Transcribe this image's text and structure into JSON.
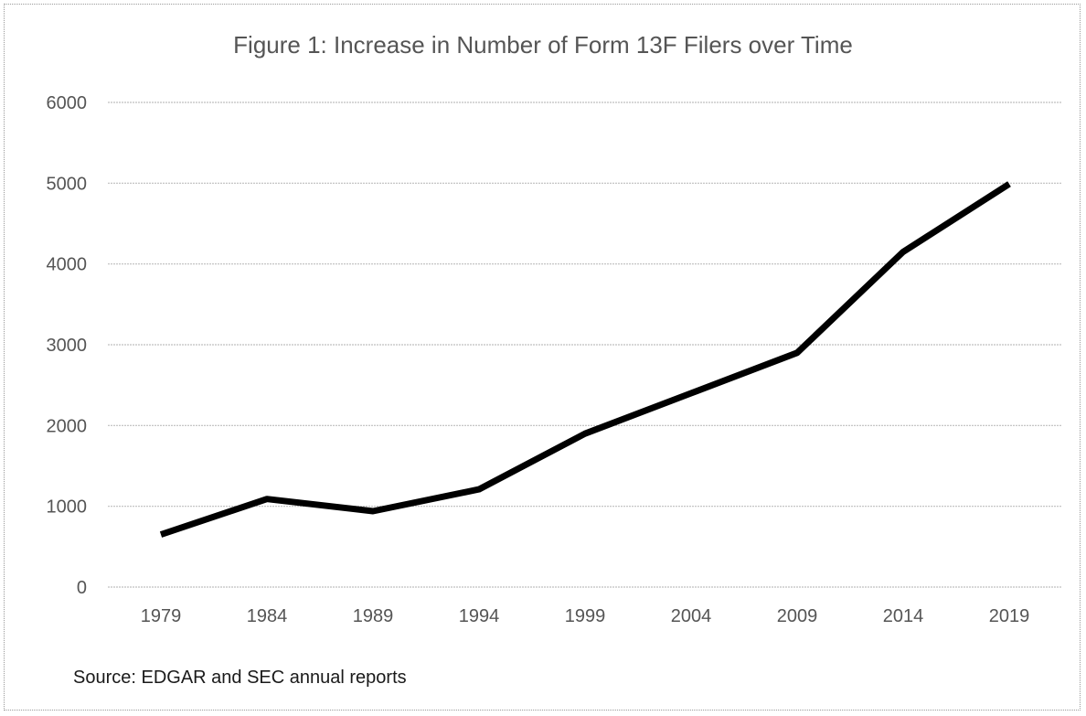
{
  "chart_data": {
    "type": "line",
    "title": "Figure 1: Increase in Number of Form 13F Filers over Time",
    "xlabel": "",
    "ylabel": "",
    "categories": [
      "1979",
      "1984",
      "1989",
      "1994",
      "1999",
      "2004",
      "2009",
      "2014",
      "2019"
    ],
    "series": [
      {
        "values": [
          650,
          1090,
          940,
          1210,
          1900,
          2400,
          2900,
          4150,
          4990
        ]
      }
    ],
    "ylim": [
      0,
      6000
    ],
    "yticks": [
      0,
      1000,
      2000,
      3000,
      4000,
      5000,
      6000
    ],
    "grid": true,
    "legend": "none",
    "line_color": "#000000",
    "grid_color": "#bfbfbf"
  },
  "source_note": "Source:  EDGAR and SEC annual reports"
}
